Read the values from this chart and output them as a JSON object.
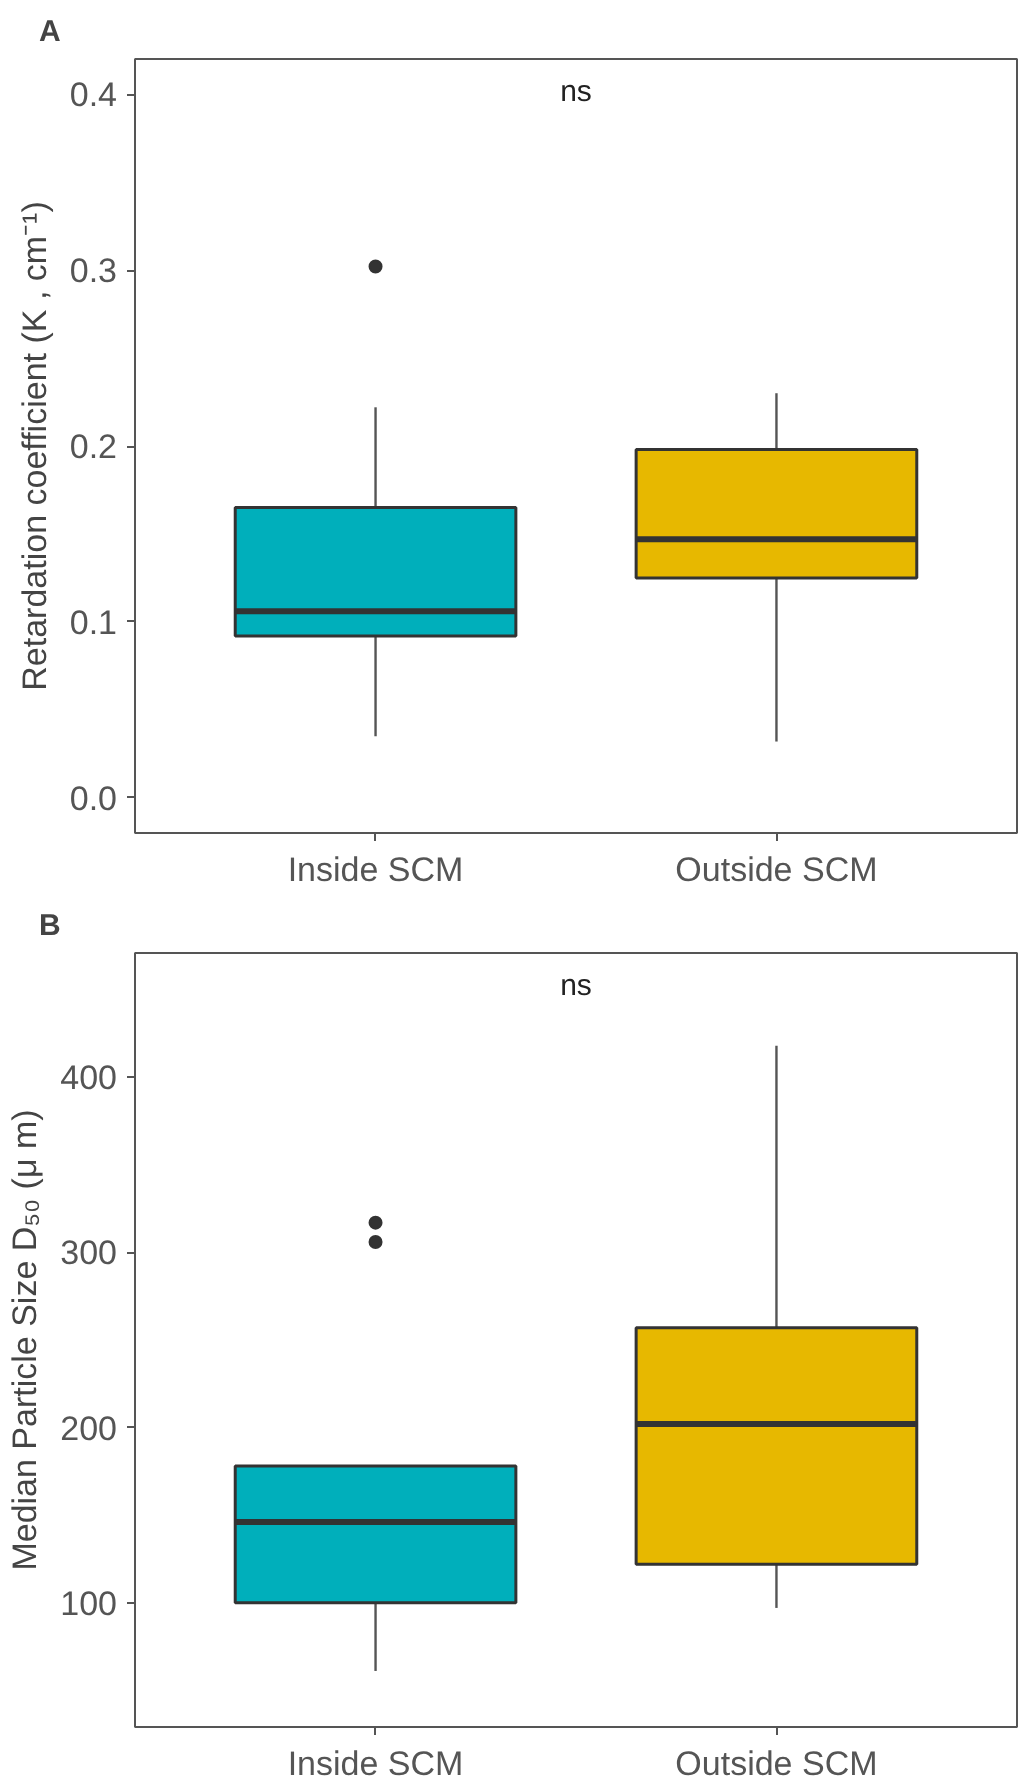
{
  "chart_data": [
    {
      "type": "box",
      "title": "A",
      "categories": [
        "Inside SCM",
        "Outside SCM"
      ],
      "ylabel": "Retardation coefficient (K , cm⁻¹)",
      "colors": [
        "#00afbb",
        "#e7b800"
      ],
      "boxes": [
        {
          "low": 0.035,
          "q1": 0.092,
          "median": 0.106,
          "q3": 0.165,
          "high": 0.222,
          "outliers": [
            0.302
          ]
        },
        {
          "low": 0.032,
          "q1": 0.125,
          "median": 0.147,
          "q3": 0.198,
          "high": 0.23
        }
      ],
      "ylim": [
        -0.02,
        0.42
      ],
      "yticks": [
        {
          "value": 0,
          "label": "0.0"
        },
        0.1,
        0.2,
        0.3,
        0.4
      ],
      "annotations": [
        "ns"
      ]
    },
    {
      "type": "box",
      "title": "B",
      "categories": [
        "Inside SCM",
        "Outside SCM"
      ],
      "ylabel": "Median Particle Size D₅₀ (μ m)",
      "colors": [
        "#00afbb",
        "#e7b800"
      ],
      "boxes": [
        {
          "low": 61,
          "q1": 100,
          "median": 146,
          "q3": 178,
          "high": 178,
          "outliers": [
            317,
            306
          ]
        },
        {
          "low": 97,
          "q1": 122,
          "median": 202,
          "q3": 257,
          "high": 418
        }
      ],
      "ylim": [
        29,
        471
      ],
      "yticks": [
        100,
        200,
        300,
        400
      ],
      "annotations": [
        "ns"
      ]
    }
  ]
}
